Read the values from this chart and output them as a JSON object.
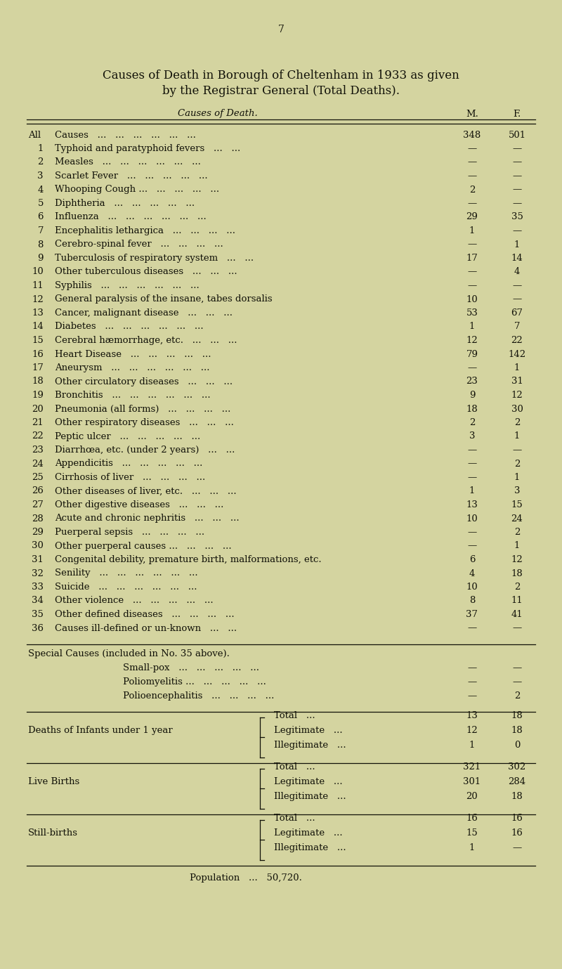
{
  "page_number": "7",
  "title_line1": "Causes of Death in Borough of Cheltenham in 1933 as given",
  "title_line2": "by the Registrar General (Total Deaths).",
  "col_header_cause": "Causes of Death.",
  "col_header_m": "M.",
  "col_header_f": "F.",
  "bg_color": "#d4d4a0",
  "text_color": "#111108",
  "rows": [
    {
      "num": "All",
      "cause": "Causes   ...   ...   ...   ...   ...   ...",
      "m": "348",
      "f": "501"
    },
    {
      "num": "1",
      "cause": "Typhoid and paratyphoid fevers   ...   ...",
      "m": "—",
      "f": "—"
    },
    {
      "num": "2",
      "cause": "Measles   ...   ...   ...   ...   ...   ...",
      "m": "—",
      "f": "—"
    },
    {
      "num": "3",
      "cause": "Scarlet Fever   ...   ...   ...   ...   ...",
      "m": "—",
      "f": "—"
    },
    {
      "num": "4",
      "cause": "Whooping Cough ...   ...   ...   ...   ...",
      "m": "2",
      "f": "—"
    },
    {
      "num": "5",
      "cause": "Diphtheria   ...   ...   ...   ...   ...",
      "m": "—",
      "f": "—"
    },
    {
      "num": "6",
      "cause": "Influenza   ...   ...   ...   ...   ...   ...",
      "m": "29",
      "f": "35"
    },
    {
      "num": "7",
      "cause": "Encephalitis lethargica   ...   ...   ...   ...",
      "m": "1",
      "f": "—"
    },
    {
      "num": "8",
      "cause": "Cerebro-spinal fever   ...   ...   ...   ...",
      "m": "—",
      "f": "1"
    },
    {
      "num": "9",
      "cause": "Tuberculosis of respiratory system   ...   ...",
      "m": "17",
      "f": "14"
    },
    {
      "num": "10",
      "cause": "Other tuberculous diseases   ...   ...   ...",
      "m": "—",
      "f": "4"
    },
    {
      "num": "11",
      "cause": "Syphilis   ...   ...   ...   ...   ...   ...",
      "m": "—",
      "f": "—"
    },
    {
      "num": "12",
      "cause": "General paralysis of the insane, tabes dorsalis",
      "m": "10",
      "f": "—"
    },
    {
      "num": "13",
      "cause": "Cancer, malignant disease   ...   ...   ...",
      "m": "53",
      "f": "67"
    },
    {
      "num": "14",
      "cause": "Diabetes   ...   ...   ...   ...   ...   ...",
      "m": "1",
      "f": "7"
    },
    {
      "num": "15",
      "cause": "Cerebral hæmorrhage, etc.   ...   ...   ...",
      "m": "12",
      "f": "22"
    },
    {
      "num": "16",
      "cause": "Heart Disease   ...   ...   ...   ...   ...",
      "m": "79",
      "f": "142"
    },
    {
      "num": "17",
      "cause": "Aneurysm   ...   ...   ...   ...   ...   ...",
      "m": "—",
      "f": "1"
    },
    {
      "num": "18",
      "cause": "Other circulatory diseases   ...   ...   ...",
      "m": "23",
      "f": "31"
    },
    {
      "num": "19",
      "cause": "Bronchitis   ...   ...   ...   ...   ...   ...",
      "m": "9",
      "f": "12"
    },
    {
      "num": "20",
      "cause": "Pneumonia (all forms)   ...   ...   ...   ...",
      "m": "18",
      "f": "30"
    },
    {
      "num": "21",
      "cause": "Other respiratory diseases   ...   ...   ...",
      "m": "2",
      "f": "2"
    },
    {
      "num": "22",
      "cause": "Peptic ulcer   ...   ...   ...   ...   ...",
      "m": "3",
      "f": "1"
    },
    {
      "num": "23",
      "cause": "Diarrhœa, etc. (under 2 years)   ...   ...",
      "m": "—",
      "f": "—"
    },
    {
      "num": "24",
      "cause": "Appendicitis   ...   ...   ...   ...   ...",
      "m": "—",
      "f": "2"
    },
    {
      "num": "25",
      "cause": "Cirrhosis of liver   ...   ...   ...   ...",
      "m": "—",
      "f": "1"
    },
    {
      "num": "26",
      "cause": "Other diseases of liver, etc.   ...   ...   ...",
      "m": "1",
      "f": "3"
    },
    {
      "num": "27",
      "cause": "Other digestive diseases   ...   ...   ...",
      "m": "13",
      "f": "15"
    },
    {
      "num": "28",
      "cause": "Acute and chronic nephritis   ...   ...   ...",
      "m": "10",
      "f": "24"
    },
    {
      "num": "29",
      "cause": "Puerperal sepsis   ...   ...   ...   ...",
      "m": "—",
      "f": "2"
    },
    {
      "num": "30",
      "cause": "Other puerperal causes ...   ...   ...   ...",
      "m": "—",
      "f": "1"
    },
    {
      "num": "31",
      "cause": "Congenital debility, premature birth, malformations, etc.",
      "m": "6",
      "f": "12"
    },
    {
      "num": "32",
      "cause": "Senility   ...   ...   ...   ...   ...   ...",
      "m": "4",
      "f": "18"
    },
    {
      "num": "33",
      "cause": "Suicide   ...   ...   ...   ...   ...   ...",
      "m": "10",
      "f": "2"
    },
    {
      "num": "34",
      "cause": "Other violence   ...   ...   ...   ...   ...",
      "m": "8",
      "f": "11"
    },
    {
      "num": "35",
      "cause": "Other defined diseases   ...   ...   ...   ...",
      "m": "37",
      "f": "41"
    },
    {
      "num": "36",
      "cause": "Causes ill-defined or un-known   ...   ...",
      "m": "—",
      "f": "—"
    }
  ],
  "special_section_title": "Special Causes (included in No. 35 above).",
  "special_rows": [
    {
      "cause": "Small-pox   ...   ...   ...   ...   ...",
      "m": "—",
      "f": "—"
    },
    {
      "cause": "Poliomyelitis ...   ...   ...   ...   ...",
      "m": "—",
      "f": "—"
    },
    {
      "cause": "Polioencephalitis   ...   ...   ...   ...",
      "m": "—",
      "f": "2"
    }
  ],
  "grouped_rows": [
    {
      "label": "Deaths of Infants under 1 year",
      "sub": [
        {
          "sub_label": "Total   ...",
          "m": "13",
          "f": "18"
        },
        {
          "sub_label": "Legitimate   ...",
          "m": "12",
          "f": "18"
        },
        {
          "sub_label": "Illegitimate   ...",
          "m": "1",
          "f": "0"
        }
      ]
    },
    {
      "label": "Live Births",
      "sub": [
        {
          "sub_label": "Total   ...",
          "m": "321",
          "f": "302"
        },
        {
          "sub_label": "Legitimate   ...",
          "m": "301",
          "f": "284"
        },
        {
          "sub_label": "Illegitimate   ...",
          "m": "20",
          "f": "18"
        }
      ]
    },
    {
      "label": "Still-births",
      "sub": [
        {
          "sub_label": "Total   ...",
          "m": "16",
          "f": "16"
        },
        {
          "sub_label": "Legitimate   ...",
          "m": "15",
          "f": "16"
        },
        {
          "sub_label": "Illegitimate   ...",
          "m": "1",
          "f": "—"
        }
      ]
    }
  ],
  "population_line": "Population   ...   50,720."
}
